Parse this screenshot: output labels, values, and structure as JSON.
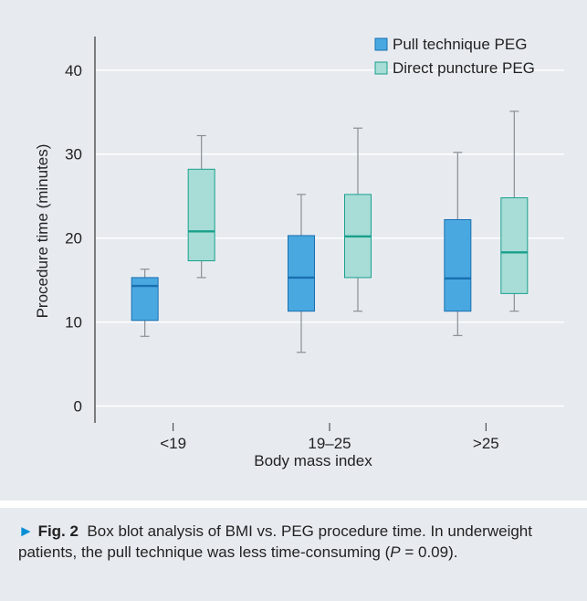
{
  "chart_data": {
    "type": "box",
    "xlabel": "Body mass index",
    "ylabel": "Procedure time (minutes)",
    "ylim": [
      -2,
      44
    ],
    "yticks": [
      0,
      10,
      20,
      30,
      40
    ],
    "categories": [
      "<19",
      "19–25",
      ">25"
    ],
    "legend_position": "top-right",
    "series": [
      {
        "name": "Pull technique PEG",
        "color": "#4aa8e0",
        "median_color": "#1a6fb0",
        "boxes": [
          {
            "min": 8.3,
            "q1": 10.2,
            "median": 14.3,
            "q3": 15.3,
            "max": 16.3
          },
          {
            "min": 6.4,
            "q1": 11.3,
            "median": 15.3,
            "q3": 20.3,
            "max": 25.2
          },
          {
            "min": 8.4,
            "q1": 11.3,
            "median": 15.2,
            "q3": 22.2,
            "max": 30.2
          }
        ]
      },
      {
        "name": "Direct puncture PEG",
        "color": "#a8dcd6",
        "median_color": "#18a08c",
        "boxes": [
          {
            "min": 15.3,
            "q1": 17.3,
            "median": 20.8,
            "q3": 28.2,
            "max": 32.2
          },
          {
            "min": 11.3,
            "q1": 15.3,
            "median": 20.2,
            "q3": 25.2,
            "max": 33.1
          },
          {
            "min": 11.3,
            "q1": 13.4,
            "median": 18.3,
            "q3": 24.8,
            "max": 35.1
          }
        ]
      }
    ]
  },
  "caption": {
    "arrow": "►",
    "label": "Fig. 2",
    "text": "Box blot analysis of BMI vs. PEG procedure time. In underweight patients, the pull technique was less time-consuming (",
    "p_symbol": "P",
    "p_value": " = 0.09)."
  }
}
